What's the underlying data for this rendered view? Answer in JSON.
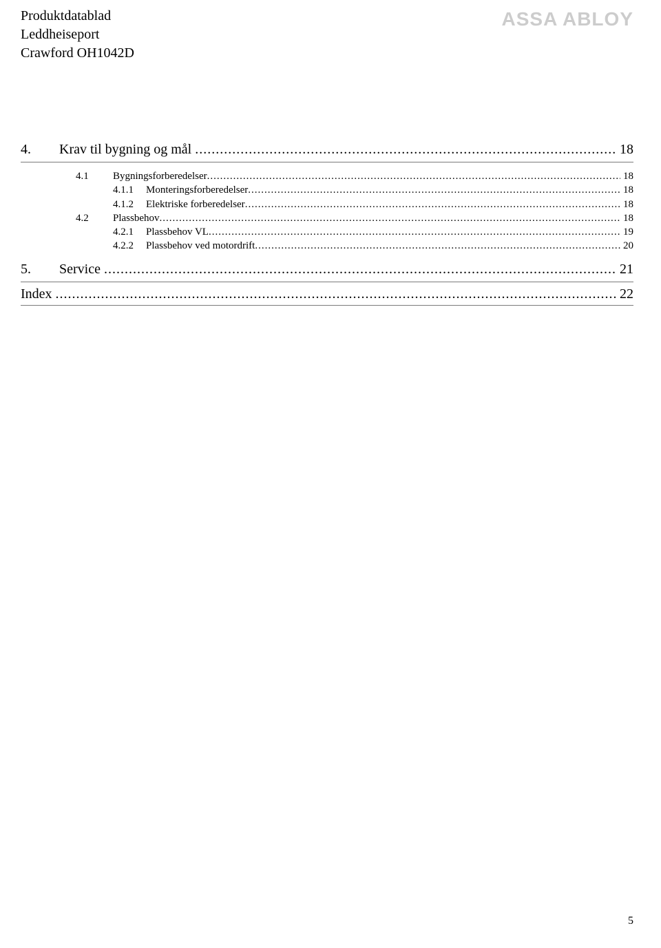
{
  "header": {
    "line1": "Produktdatablad",
    "line2": "Leddheiseport",
    "line3": "Crawford OH1042D",
    "brand": "ASSA ABLOY"
  },
  "toc": {
    "section4": {
      "num": "4.",
      "title": "Krav til bygning og mål",
      "page": "18",
      "items": [
        {
          "level": 2,
          "num": "4.1",
          "title": "Bygningsforberedelser",
          "page": "18"
        },
        {
          "level": 3,
          "num": "4.1.1",
          "title": "Monteringsforberedelser",
          "page": "18"
        },
        {
          "level": 3,
          "num": "4.1.2",
          "title": "Elektriske forberedelser",
          "page": "18"
        },
        {
          "level": 2,
          "num": "4.2",
          "title": "Plassbehov",
          "page": "18"
        },
        {
          "level": 3,
          "num": "4.2.1",
          "title": "Plassbehov VL",
          "page": "19"
        },
        {
          "level": 3,
          "num": "4.2.2",
          "title": "Plassbehov ved motordrift",
          "page": "20"
        }
      ]
    },
    "section5": {
      "num": "5.",
      "title": "Service",
      "page": "21"
    },
    "index": {
      "title": "Index",
      "page": "22"
    }
  },
  "footer": {
    "pageNumber": "5"
  },
  "style": {
    "leaderChar": "."
  }
}
